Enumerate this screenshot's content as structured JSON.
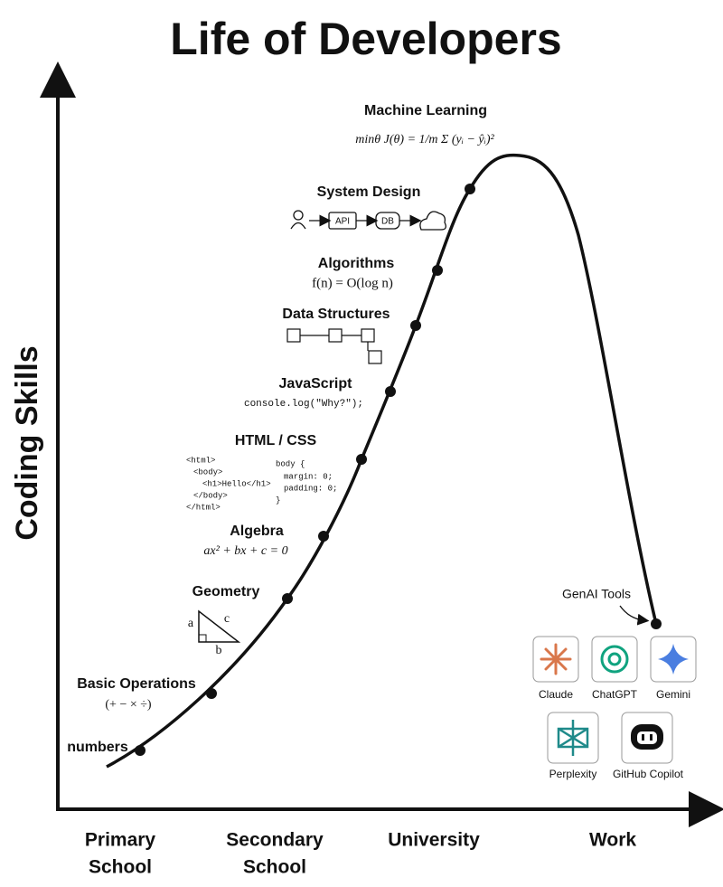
{
  "title": "Life of Developers",
  "y_axis_label": "Coding Skills",
  "stages": [
    [
      "Primary",
      "School"
    ],
    [
      "Secondary",
      "School"
    ],
    [
      "University"
    ],
    [
      "Work"
    ]
  ],
  "milestones": [
    {
      "label": "numbers"
    },
    {
      "label": "Basic Operations",
      "detail": "(+ − × ÷)"
    },
    {
      "label": "Geometry",
      "sides": [
        "a",
        "b",
        "c"
      ]
    },
    {
      "label": "Algebra",
      "detail": "ax² + bx + c = 0"
    },
    {
      "label": "HTML / CSS",
      "html_code": [
        "<html>",
        "<body>",
        "<h1>Hello</h1>",
        "</body>",
        "</html>"
      ],
      "css_code": [
        "body {",
        "margin: 0;",
        "padding: 0;",
        "}"
      ]
    },
    {
      "label": "JavaScript",
      "detail": "console.log(\"Why?\");"
    },
    {
      "label": "Data Structures"
    },
    {
      "label": "Algorithms",
      "detail": "f(n) = O(log n)"
    },
    {
      "label": "System Design",
      "nodes": [
        "API",
        "DB"
      ]
    },
    {
      "label": "Machine Learning",
      "detail": "minθ J(θ) = 1/m Σ (yᵢ − ŷᵢ)²"
    }
  ],
  "genai": {
    "label": "GenAI Tools",
    "tools": [
      "Claude",
      "ChatGPT",
      "Gemini",
      "Perplexity",
      "GitHub Copilot"
    ]
  }
}
